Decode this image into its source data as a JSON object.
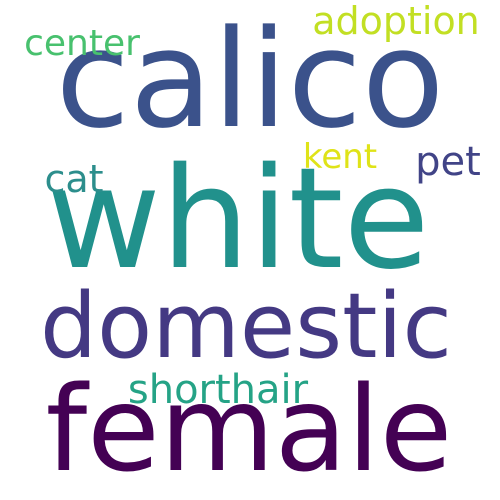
{
  "words": [
    {
      "text": "calico",
      "color": "#3b528b"
    },
    {
      "text": "white",
      "color": "#21918c"
    },
    {
      "text": "domestic",
      "color": "#443983"
    },
    {
      "text": "female",
      "color": "#440154"
    },
    {
      "text": "shorthair",
      "color": "#25a386"
    },
    {
      "text": "cat",
      "color": "#2c8e8c"
    },
    {
      "text": "pet",
      "color": "#414487"
    },
    {
      "text": "kent",
      "color": "#dfe318"
    },
    {
      "text": "center",
      "color": "#48c16e"
    },
    {
      "text": "adoption",
      "color": "#c2df23"
    }
  ]
}
